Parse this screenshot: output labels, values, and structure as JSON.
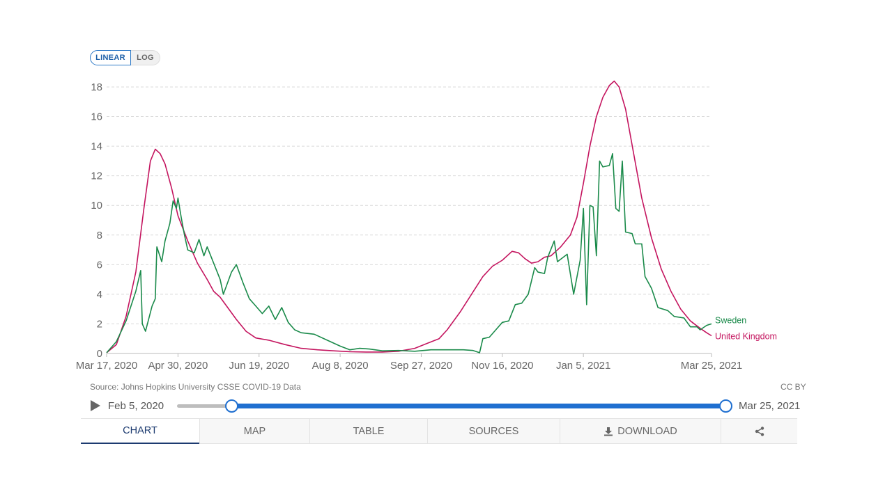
{
  "scale_toggle": {
    "linear_label": "LINEAR",
    "log_label": "LOG",
    "active": "LINEAR"
  },
  "chart_data": {
    "type": "line",
    "y_ticks": [
      "0",
      "2",
      "4",
      "6",
      "8",
      "10",
      "12",
      "14",
      "16",
      "18"
    ],
    "ylim": [
      0,
      18
    ],
    "x_ticks": [
      "Mar 17, 2020",
      "Apr 30, 2020",
      "Jun 19, 2020",
      "Aug 8, 2020",
      "Sep 27, 2020",
      "Nov 16, 2020",
      "Jan 5, 2021",
      "Mar 25, 2021"
    ],
    "x_tick_days": [
      0,
      44,
      94,
      144,
      194,
      244,
      294,
      373
    ],
    "xlim_days": [
      0,
      373
    ],
    "series": [
      {
        "name": "United Kingdom",
        "color": "#c4155f",
        "points": [
          [
            0,
            0.05
          ],
          [
            6,
            0.6
          ],
          [
            12,
            2.5
          ],
          [
            18,
            5.5
          ],
          [
            23,
            9.8
          ],
          [
            27,
            13.0
          ],
          [
            30,
            13.8
          ],
          [
            33,
            13.5
          ],
          [
            36,
            12.8
          ],
          [
            40,
            11.2
          ],
          [
            44,
            9.3
          ],
          [
            50,
            7.6
          ],
          [
            56,
            6.1
          ],
          [
            62,
            5.0
          ],
          [
            66,
            4.2
          ],
          [
            70,
            3.8
          ],
          [
            74,
            3.2
          ],
          [
            80,
            2.3
          ],
          [
            86,
            1.5
          ],
          [
            92,
            1.05
          ],
          [
            100,
            0.9
          ],
          [
            110,
            0.6
          ],
          [
            120,
            0.35
          ],
          [
            130,
            0.25
          ],
          [
            140,
            0.18
          ],
          [
            150,
            0.12
          ],
          [
            160,
            0.1
          ],
          [
            170,
            0.1
          ],
          [
            180,
            0.15
          ],
          [
            190,
            0.35
          ],
          [
            198,
            0.7
          ],
          [
            205,
            1.0
          ],
          [
            210,
            1.6
          ],
          [
            218,
            2.8
          ],
          [
            225,
            4.0
          ],
          [
            232,
            5.2
          ],
          [
            238,
            5.9
          ],
          [
            244,
            6.3
          ],
          [
            250,
            6.9
          ],
          [
            254,
            6.8
          ],
          [
            258,
            6.4
          ],
          [
            262,
            6.1
          ],
          [
            266,
            6.2
          ],
          [
            270,
            6.5
          ],
          [
            274,
            6.6
          ],
          [
            280,
            7.2
          ],
          [
            286,
            8.0
          ],
          [
            290,
            9.2
          ],
          [
            294,
            11.5
          ],
          [
            298,
            14.0
          ],
          [
            302,
            16.0
          ],
          [
            306,
            17.3
          ],
          [
            310,
            18.1
          ],
          [
            313,
            18.4
          ],
          [
            316,
            18.0
          ],
          [
            320,
            16.5
          ],
          [
            325,
            13.5
          ],
          [
            330,
            10.5
          ],
          [
            336,
            7.8
          ],
          [
            342,
            5.7
          ],
          [
            348,
            4.2
          ],
          [
            354,
            3.0
          ],
          [
            360,
            2.2
          ],
          [
            366,
            1.7
          ],
          [
            370,
            1.4
          ],
          [
            373,
            1.2
          ]
        ]
      },
      {
        "name": "Sweden",
        "color": "#1a8a4a",
        "points": [
          [
            0,
            0.05
          ],
          [
            6,
            0.8
          ],
          [
            12,
            2.2
          ],
          [
            18,
            4.2
          ],
          [
            21,
            5.6
          ],
          [
            22,
            2.0
          ],
          [
            24,
            1.5
          ],
          [
            28,
            3.2
          ],
          [
            30,
            3.7
          ],
          [
            31,
            7.2
          ],
          [
            34,
            6.2
          ],
          [
            36,
            7.6
          ],
          [
            39,
            8.8
          ],
          [
            41,
            10.3
          ],
          [
            43,
            9.8
          ],
          [
            44,
            10.5
          ],
          [
            46,
            9.2
          ],
          [
            48,
            8.0
          ],
          [
            50,
            7.0
          ],
          [
            54,
            6.8
          ],
          [
            57,
            7.7
          ],
          [
            60,
            6.6
          ],
          [
            62,
            7.2
          ],
          [
            66,
            6.1
          ],
          [
            70,
            5.0
          ],
          [
            72,
            4.0
          ],
          [
            74,
            4.6
          ],
          [
            77,
            5.5
          ],
          [
            80,
            6.0
          ],
          [
            84,
            4.8
          ],
          [
            88,
            3.7
          ],
          [
            92,
            3.2
          ],
          [
            96,
            2.7
          ],
          [
            100,
            3.2
          ],
          [
            104,
            2.3
          ],
          [
            108,
            3.1
          ],
          [
            112,
            2.1
          ],
          [
            116,
            1.6
          ],
          [
            120,
            1.4
          ],
          [
            128,
            1.3
          ],
          [
            136,
            0.9
          ],
          [
            144,
            0.5
          ],
          [
            150,
            0.25
          ],
          [
            156,
            0.35
          ],
          [
            162,
            0.3
          ],
          [
            170,
            0.18
          ],
          [
            180,
            0.2
          ],
          [
            190,
            0.15
          ],
          [
            200,
            0.25
          ],
          [
            210,
            0.25
          ],
          [
            220,
            0.25
          ],
          [
            226,
            0.2
          ],
          [
            230,
            0.05
          ],
          [
            232,
            1.0
          ],
          [
            236,
            1.1
          ],
          [
            240,
            1.6
          ],
          [
            244,
            2.1
          ],
          [
            248,
            2.2
          ],
          [
            252,
            3.3
          ],
          [
            256,
            3.4
          ],
          [
            260,
            4.0
          ],
          [
            264,
            5.8
          ],
          [
            266,
            5.5
          ],
          [
            270,
            5.4
          ],
          [
            272,
            6.5
          ],
          [
            276,
            7.6
          ],
          [
            278,
            6.2
          ],
          [
            284,
            6.7
          ],
          [
            288,
            4.0
          ],
          [
            292,
            6.3
          ],
          [
            294,
            9.8
          ],
          [
            296,
            3.3
          ],
          [
            298,
            10.0
          ],
          [
            300,
            9.9
          ],
          [
            302,
            6.6
          ],
          [
            304,
            13.0
          ],
          [
            306,
            12.6
          ],
          [
            310,
            12.7
          ],
          [
            312,
            13.5
          ],
          [
            314,
            9.8
          ],
          [
            316,
            9.6
          ],
          [
            318,
            13.0
          ],
          [
            320,
            8.2
          ],
          [
            324,
            8.1
          ],
          [
            326,
            7.4
          ],
          [
            330,
            7.4
          ],
          [
            332,
            5.2
          ],
          [
            336,
            4.4
          ],
          [
            340,
            3.1
          ],
          [
            346,
            2.9
          ],
          [
            350,
            2.5
          ],
          [
            356,
            2.4
          ],
          [
            360,
            1.8
          ],
          [
            364,
            1.8
          ],
          [
            366,
            1.6
          ],
          [
            370,
            1.9
          ],
          [
            373,
            2.0
          ]
        ]
      }
    ]
  },
  "source": "Source: Johns Hopkins University CSSE COVID-19 Data",
  "license": "CC BY",
  "timeline": {
    "start_label": "Feb 5, 2020",
    "end_label": "Mar 25, 2021",
    "start_fraction": 0.1,
    "end_fraction": 1.0
  },
  "tabs": [
    {
      "label": "CHART",
      "active": true
    },
    {
      "label": "MAP",
      "active": false
    },
    {
      "label": "TABLE",
      "active": false
    },
    {
      "label": "SOURCES",
      "active": false
    },
    {
      "label": "DOWNLOAD",
      "active": false,
      "icon": "download-icon"
    },
    {
      "label": "",
      "active": false,
      "icon": "share-icon"
    }
  ]
}
